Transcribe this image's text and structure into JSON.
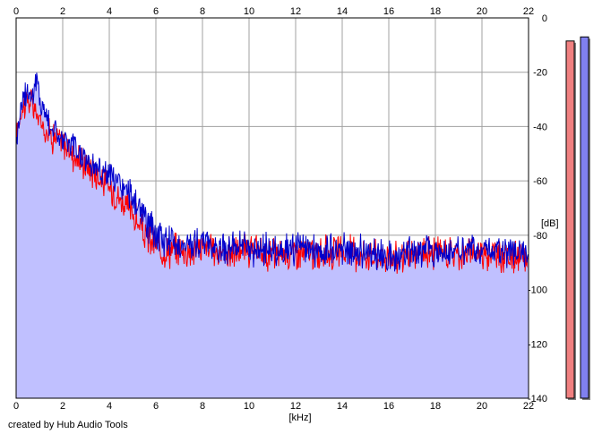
{
  "chart_data": {
    "type": "line",
    "xlabel": "[kHz]",
    "ylabel": "[dB]",
    "xlim": [
      0,
      22
    ],
    "ylim": [
      -140,
      0
    ],
    "x_ticks": [
      0,
      2,
      4,
      6,
      8,
      10,
      12,
      14,
      16,
      18,
      20,
      22
    ],
    "y_ticks": [
      0,
      -20,
      -40,
      -60,
      -80,
      -100,
      -120,
      -140
    ],
    "x_tick_labels": [
      "0",
      "2",
      "4",
      "6",
      "8",
      "10",
      "12",
      "14",
      "16",
      "18",
      "20",
      "22"
    ],
    "y_tick_labels": [
      "0",
      "-20",
      "-40",
      "-60",
      "-80",
      "-100",
      "-120",
      "-140"
    ],
    "grid": true,
    "area_fill_color": "#c0c0ff",
    "series": [
      {
        "color": "#ff0000",
        "x": [
          0,
          0.25,
          0.5,
          0.75,
          1,
          1.5,
          2,
          2.5,
          3,
          3.5,
          4,
          4.5,
          5,
          5.5,
          6,
          6.5,
          7,
          7.5,
          8,
          8.5,
          9,
          9.5,
          10,
          11,
          12,
          13,
          14,
          15,
          16,
          16.5,
          17,
          18,
          19,
          20,
          21,
          22
        ],
        "values": [
          -42,
          -33,
          -30,
          -33,
          -38,
          -43,
          -46,
          -51,
          -54,
          -58,
          -62,
          -67,
          -72,
          -80,
          -84,
          -86,
          -85,
          -86,
          -84,
          -86,
          -87,
          -86,
          -86,
          -87,
          -86,
          -87,
          -86,
          -87,
          -88,
          -89,
          -87,
          -86,
          -87,
          -86,
          -88,
          -89
        ]
      },
      {
        "color": "#0000cc",
        "x": [
          0,
          0.25,
          0.5,
          0.75,
          0.9,
          1,
          1.5,
          2,
          2.5,
          3,
          3.5,
          4,
          4.5,
          5,
          5.5,
          6,
          6.5,
          7,
          7.5,
          8,
          8.5,
          9,
          9.5,
          10,
          11,
          12,
          13,
          14,
          15,
          16,
          17,
          18,
          19,
          20,
          21,
          22
        ],
        "values": [
          -45,
          -30,
          -27,
          -28,
          -22,
          -30,
          -40,
          -45,
          -48,
          -52,
          -55,
          -58,
          -62,
          -66,
          -74,
          -80,
          -82,
          -83,
          -84,
          -82,
          -84,
          -85,
          -84,
          -85,
          -86,
          -85,
          -86,
          -85,
          -86,
          -88,
          -86,
          -85,
          -86,
          -85,
          -86,
          -86
        ]
      }
    ],
    "meters": [
      {
        "color": "#f08080",
        "level": -8.5
      },
      {
        "color": "#8080f0",
        "level": -7.0
      }
    ]
  },
  "footer": {
    "credit": "created by Hub Audio Tools"
  }
}
